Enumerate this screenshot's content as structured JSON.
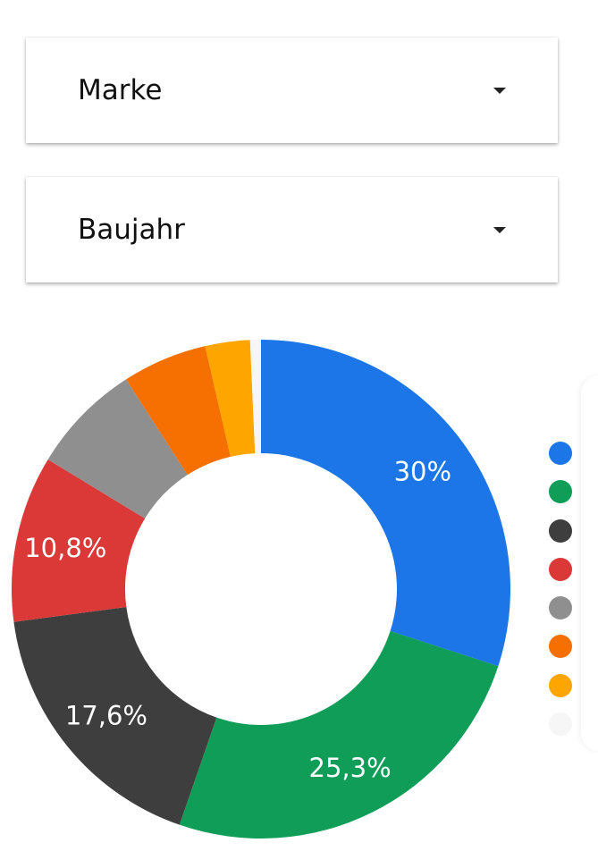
{
  "filters": {
    "brand_label": "Marke",
    "year_label": "Baujahr"
  },
  "chart_data": {
    "type": "pie",
    "donut": true,
    "values": [
      30,
      25.3,
      17.6,
      10.8,
      7.2,
      5.5,
      2.9,
      0.7
    ],
    "data_labels": [
      "30%",
      "25,3%",
      "17,6%",
      "10,8%",
      "",
      "",
      "",
      ""
    ],
    "colors": [
      "#1c76e8",
      "#0f9d58",
      "#3e3e3e",
      "#db3838",
      "#8f8f8f",
      "#f57000",
      "#ffa500",
      "#f6f6f6"
    ],
    "legend": "right"
  }
}
